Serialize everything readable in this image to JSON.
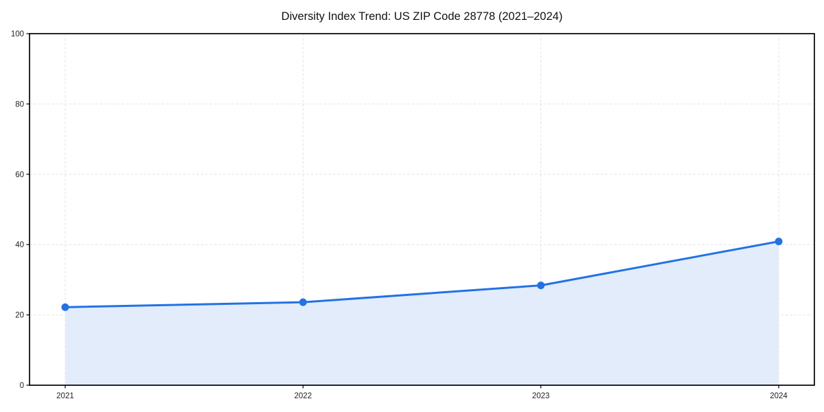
{
  "chart_data": {
    "type": "line",
    "title": "Diversity Index Trend: US ZIP Code 28778 (2021–2024)",
    "categories": [
      "2021",
      "2022",
      "2023",
      "2024"
    ],
    "series": [
      {
        "name": "Diversity Index",
        "values": [
          22.2,
          23.6,
          28.4,
          40.9
        ]
      }
    ],
    "xlabel": "",
    "ylabel": "",
    "ylim": [
      0,
      100
    ],
    "yticks": [
      0,
      20,
      40,
      60,
      80,
      100
    ],
    "grid": "on",
    "grid_style": "dashed",
    "legend": "none",
    "area_fill": "on",
    "marker": "circle",
    "colors": {
      "line": "#2272e4",
      "marker": "#2272e4",
      "area_fill": "#e3ecfb",
      "grid": "#e2e2e2",
      "spine": "#000000",
      "tick_label": "#222222",
      "title": "#111111",
      "background": "#ffffff"
    }
  }
}
